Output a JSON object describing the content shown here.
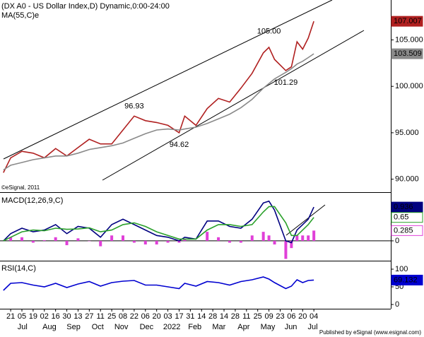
{
  "chart_data": [
    {
      "type": "line",
      "title": "(DX A0 - US Dollar Index,D) Dynamic,0:00-24:00",
      "source": "©eSignal, 2011",
      "x": [
        -1.3,
        0,
        2,
        4,
        6,
        8,
        10,
        12,
        14,
        16,
        18,
        20,
        22,
        24,
        26,
        28,
        30,
        31,
        33,
        35,
        37,
        39,
        41,
        43,
        45,
        46,
        47,
        49,
        50,
        51,
        52,
        53,
        54
      ],
      "xlim": [
        -1.9,
        67.7
      ],
      "ylim": [
        88.6,
        109.3
      ],
      "yticks": [
        {
          "value": 105,
          "label": "105.000"
        },
        {
          "value": 100,
          "label": "100.000"
        },
        {
          "value": 95,
          "label": "95.000"
        },
        {
          "value": 90,
          "label": "90.000"
        }
      ],
      "series": [
        {
          "color": "#b02020",
          "box": "filled",
          "values": [
            90.7,
            92.3,
            93.0,
            92.8,
            92.3,
            93.3,
            92.5,
            93.4,
            94.3,
            93.8,
            93.8,
            95.3,
            96.8,
            96.3,
            96.1,
            95.8,
            95.0,
            96.8,
            95.8,
            97.6,
            98.7,
            98.3,
            99.8,
            101.4,
            103.6,
            104.2,
            102.9,
            101.7,
            102.1,
            104.8,
            104.0,
            105.2,
            107.007
          ]
        },
        {
          "name": "MA(55,C)e",
          "color": "#8a8a8a",
          "box": "filled",
          "values": [
            91.0,
            91.5,
            91.8,
            92.1,
            92.3,
            92.5,
            92.5,
            92.8,
            93.2,
            93.4,
            93.6,
            93.9,
            94.4,
            94.9,
            95.3,
            95.4,
            95.3,
            95.4,
            95.6,
            96.0,
            96.5,
            97.0,
            97.7,
            98.6,
            99.8,
            100.3,
            100.8,
            101.5,
            101.9,
            102.4,
            102.7,
            103.1,
            103.509
          ]
        }
      ],
      "annotations": [
        {
          "text": "105.00",
          "x": 46,
          "y": 105.0,
          "position": "above"
        },
        {
          "text": "96.93",
          "x": 22,
          "y": 96.93,
          "position": "above"
        },
        {
          "text": "94.62",
          "x": 30,
          "y": 94.62,
          "position": "below"
        },
        {
          "text": "101.29",
          "x": 49,
          "y": 101.29,
          "position": "below"
        }
      ]
    },
    {
      "type": "line",
      "title": "MACD(12,26,9,C)",
      "x": [
        -1.3,
        0,
        2,
        4,
        6,
        8,
        10,
        12,
        14,
        16,
        18,
        20,
        22,
        24,
        26,
        28,
        30,
        31,
        33,
        35,
        37,
        39,
        41,
        43,
        45,
        46,
        47,
        49,
        50,
        51,
        52,
        53,
        54
      ],
      "xlim": [
        -1.9,
        67.7
      ],
      "ylim": [
        -0.53,
        1.29
      ],
      "yticks": [
        0
      ],
      "grid": true,
      "series": [
        {
          "type": "bar",
          "color": "#e040d8",
          "box": "outline",
          "values": [
            0,
            0.1,
            0.1,
            -0.05,
            0.02,
            0.1,
            -0.12,
            0.07,
            -0.01,
            -0.15,
            0.15,
            0.15,
            -0.05,
            -0.1,
            -0.1,
            -0.05,
            -0.05,
            0.05,
            0,
            0.25,
            0.1,
            -0.05,
            -0.05,
            0.15,
            0.25,
            0.15,
            -0.1,
            -0.5,
            -0.2,
            0.15,
            0.15,
            0.15,
            0.285
          ]
        },
        {
          "color": "#000080",
          "box": "filled",
          "values": [
            0.0,
            0.2,
            0.35,
            0.25,
            0.3,
            0.45,
            0.2,
            0.4,
            0.35,
            0.1,
            0.45,
            0.6,
            0.45,
            0.3,
            0.15,
            0.1,
            0.0,
            0.1,
            0.05,
            0.55,
            0.55,
            0.4,
            0.35,
            0.6,
            1.05,
            1.1,
            0.85,
            0.0,
            -0.05,
            0.3,
            0.45,
            0.6,
            0.936
          ]
        },
        {
          "color": "#2aa02a",
          "box": "outline",
          "values": [
            0.0,
            0.1,
            0.25,
            0.3,
            0.28,
            0.35,
            0.32,
            0.33,
            0.36,
            0.25,
            0.3,
            0.45,
            0.5,
            0.4,
            0.25,
            0.15,
            0.05,
            0.05,
            0.05,
            0.3,
            0.45,
            0.45,
            0.4,
            0.45,
            0.8,
            0.95,
            0.95,
            0.5,
            0.15,
            0.15,
            0.3,
            0.45,
            0.65
          ]
        }
      ]
    },
    {
      "type": "line",
      "title": "RSI(14,C)",
      "x": [
        -1.3,
        0,
        2,
        4,
        6,
        8,
        10,
        12,
        14,
        16,
        18,
        20,
        22,
        24,
        26,
        28,
        30,
        31,
        33,
        35,
        37,
        39,
        41,
        43,
        45,
        46,
        47,
        49,
        50,
        51,
        52,
        53,
        54
      ],
      "xlim": [
        -1.9,
        67.7
      ],
      "ylim": [
        -12,
        120
      ],
      "yticks": [
        100,
        50,
        0
      ],
      "series": [
        {
          "color": "#0000d0",
          "box": "filled",
          "values": [
            40,
            60,
            62,
            55,
            50,
            60,
            48,
            58,
            65,
            52,
            62,
            66,
            68,
            55,
            55,
            50,
            45,
            60,
            52,
            65,
            62,
            55,
            65,
            70,
            78,
            72,
            62,
            45,
            52,
            70,
            62,
            68,
            69.132
          ]
        }
      ],
      "xticks": [
        {
          "value": 0,
          "label": "21"
        },
        {
          "value": 2,
          "label": "05"
        },
        {
          "value": 4,
          "label": "19"
        },
        {
          "value": 6,
          "label": "02"
        },
        {
          "value": 8,
          "label": "16"
        },
        {
          "value": 10,
          "label": "30"
        },
        {
          "value": 12,
          "label": "13"
        },
        {
          "value": 14,
          "label": "27"
        },
        {
          "value": 16,
          "label": "11"
        },
        {
          "value": 18,
          "label": "25"
        },
        {
          "value": 20,
          "label": "08"
        },
        {
          "value": 22,
          "label": "22"
        },
        {
          "value": 24,
          "label": "06"
        },
        {
          "value": 26,
          "label": "20"
        },
        {
          "value": 28,
          "label": "03"
        },
        {
          "value": 30,
          "label": "17"
        },
        {
          "value": 32,
          "label": "31"
        },
        {
          "value": 34,
          "label": "14"
        },
        {
          "value": 36,
          "label": "28"
        },
        {
          "value": 38,
          "label": "14"
        },
        {
          "value": 40,
          "label": "28"
        },
        {
          "value": 42,
          "label": "11"
        },
        {
          "value": 44,
          "label": "25"
        },
        {
          "value": 46,
          "label": "09"
        },
        {
          "value": 48,
          "label": "23"
        },
        {
          "value": 50,
          "label": "06"
        },
        {
          "value": 52,
          "label": "20"
        },
        {
          "value": 54,
          "label": "04"
        }
      ],
      "month_ticks": [
        {
          "value": 2.1,
          "label": "Jul"
        },
        {
          "value": 6.9,
          "label": "Aug"
        },
        {
          "value": 11.2,
          "label": "Sep"
        },
        {
          "value": 15.5,
          "label": "Oct"
        },
        {
          "value": 19.7,
          "label": "Nov"
        },
        {
          "value": 24.2,
          "label": "Dec"
        },
        {
          "value": 28.7,
          "label": "2022"
        },
        {
          "value": 32.8,
          "label": "Feb"
        },
        {
          "value": 37.1,
          "label": "Mar"
        },
        {
          "value": 41.5,
          "label": "Apr"
        },
        {
          "value": 45.8,
          "label": "May"
        },
        {
          "value": 49.9,
          "label": "Jun"
        },
        {
          "value": 53.8,
          "label": "Jul"
        }
      ]
    }
  ],
  "footer": "Published by eSignal (www.esignal.com)"
}
